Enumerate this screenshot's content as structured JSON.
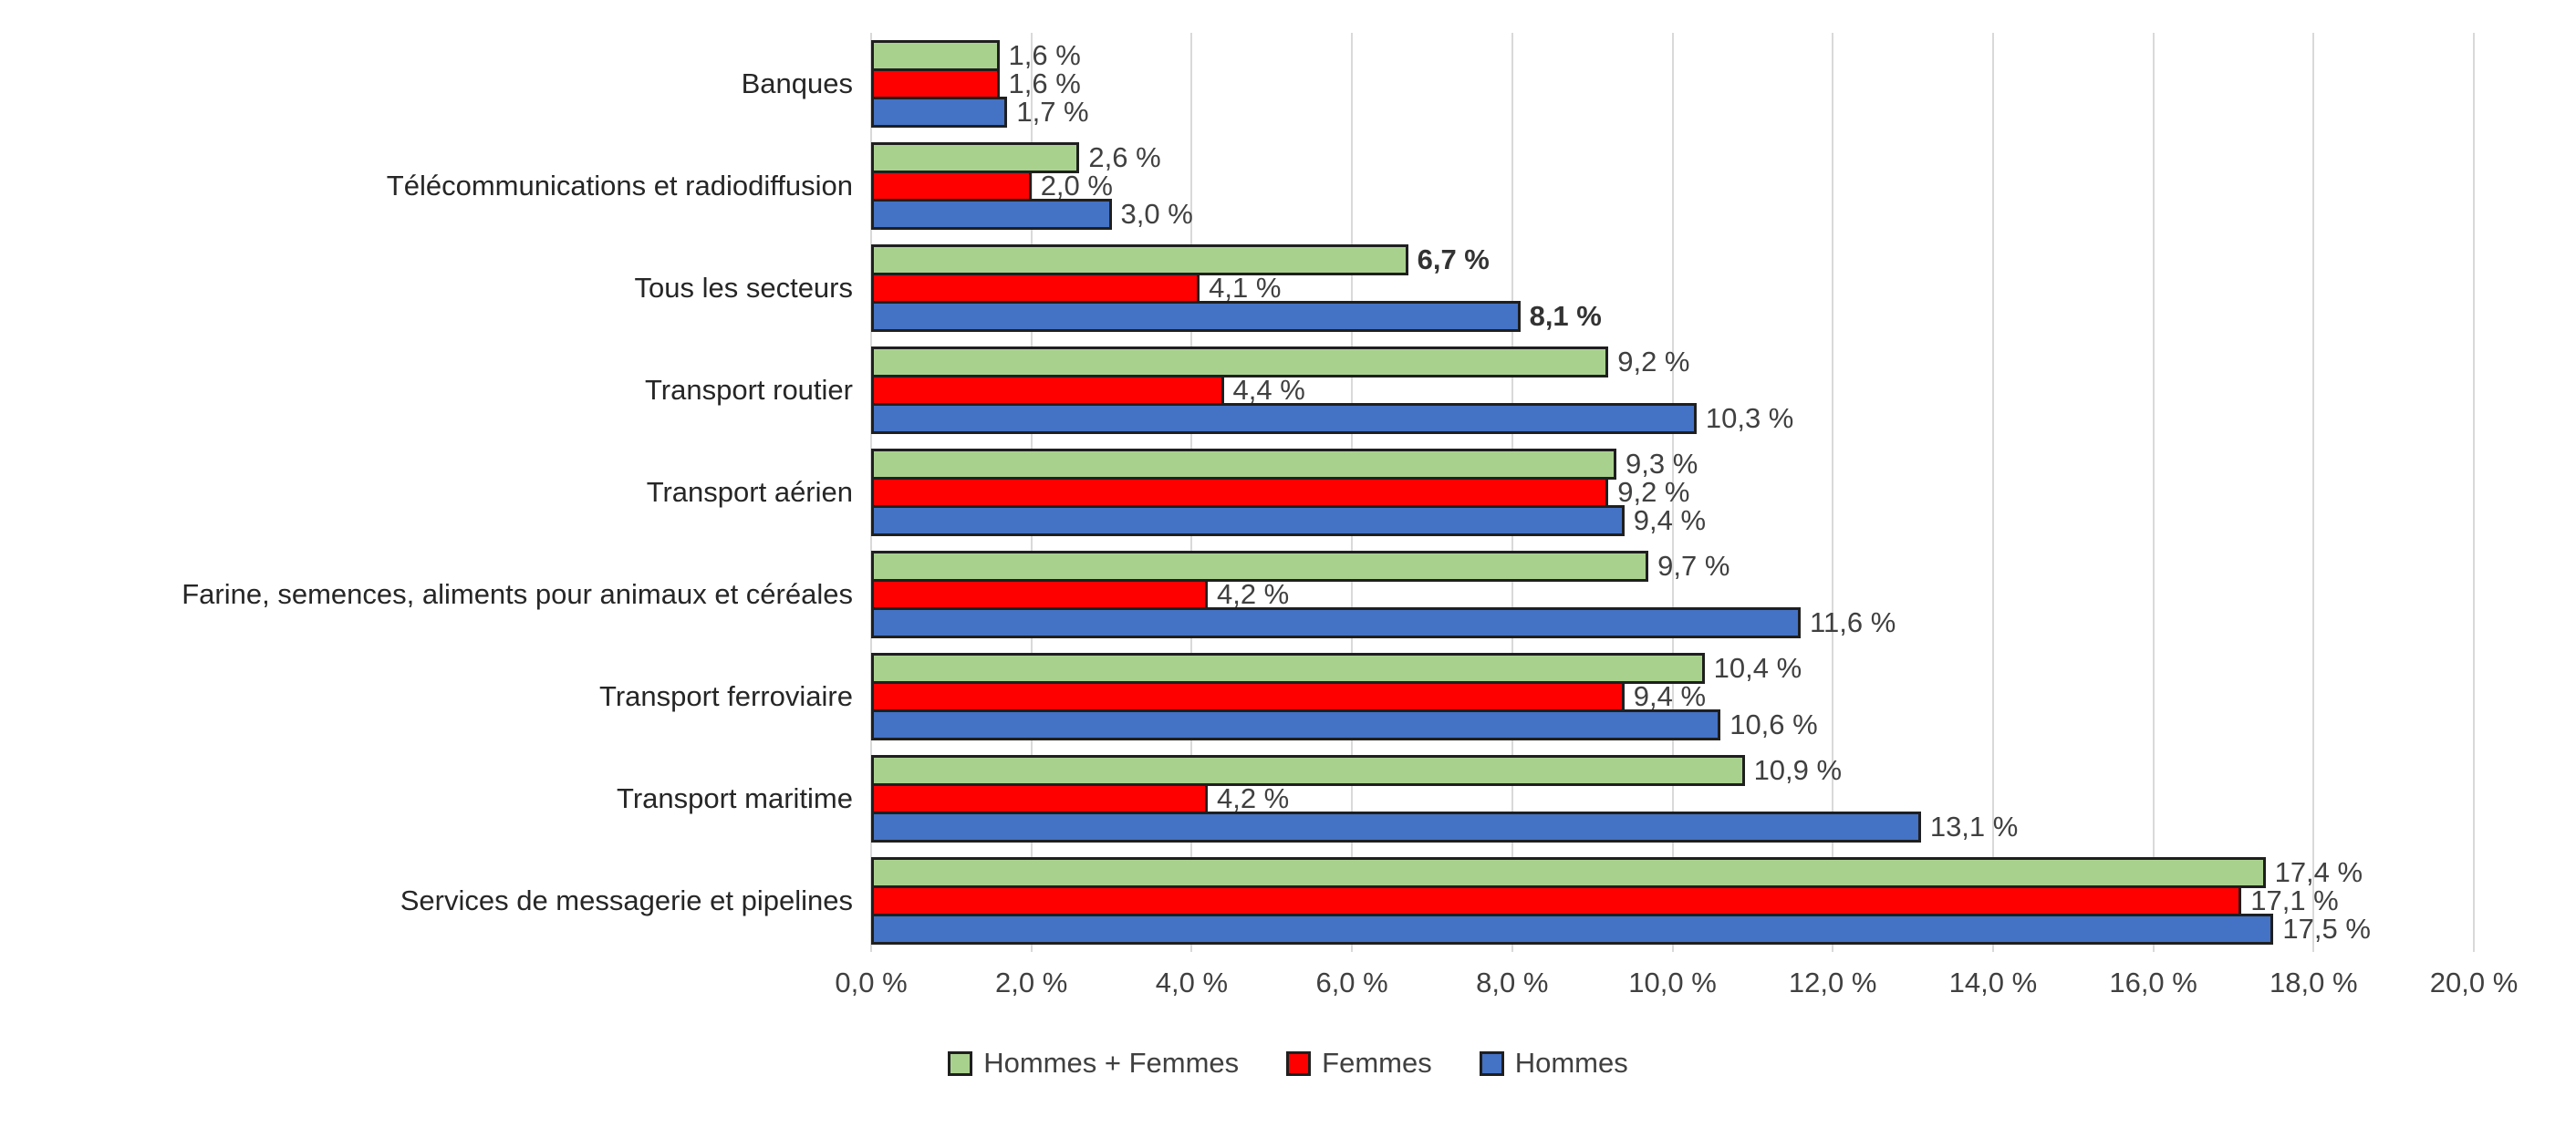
{
  "chart_data": {
    "type": "bar",
    "orientation": "horizontal",
    "title": "",
    "xlabel": "",
    "ylabel": "",
    "xlim": [
      0,
      20
    ],
    "grid": true,
    "legend_position": "bottom",
    "x_ticks": [
      "0,0 %",
      "2,0 %",
      "4,0 %",
      "6,0 %",
      "8,0 %",
      "10,0 %",
      "12,0 %",
      "14,0 %",
      "16,0 %",
      "18,0 %",
      "20,0 %"
    ],
    "categories": [
      "Banques",
      "Télécommunications et radiodiffusion",
      "Tous les secteurs",
      "Transport routier",
      "Transport aérien",
      "Farine, semences, aliments pour animaux et céréales",
      "Transport ferroviaire",
      "Transport maritime",
      "Services de messagerie et pipelines"
    ],
    "series": [
      {
        "name": "Hommes + Femmes",
        "color": "#a9d18e",
        "values": [
          1.6,
          2.6,
          6.7,
          9.2,
          9.3,
          9.7,
          10.4,
          10.9,
          17.4
        ],
        "labels": [
          "1,6 %",
          "2,6 %",
          "6,7 %",
          "9,2 %",
          "9,3 %",
          "9,7 %",
          "10,4 %",
          "10,9 %",
          "17,4 %"
        ],
        "bold": [
          false,
          false,
          true,
          false,
          false,
          false,
          false,
          false,
          false
        ]
      },
      {
        "name": "Femmes",
        "color": "#ff0000",
        "values": [
          1.6,
          2.0,
          4.1,
          4.4,
          9.2,
          4.2,
          9.4,
          4.2,
          17.1
        ],
        "labels": [
          "1,6 %",
          "2,0 %",
          "4,1 %",
          "4,4 %",
          "9,2 %",
          "4,2 %",
          "9,4 %",
          "4,2 %",
          "17,1 %"
        ],
        "bold": [
          false,
          false,
          false,
          false,
          false,
          false,
          false,
          false,
          false
        ]
      },
      {
        "name": "Hommes",
        "color": "#4472c4",
        "values": [
          1.7,
          3.0,
          8.1,
          10.3,
          9.4,
          11.6,
          10.6,
          13.1,
          17.5
        ],
        "labels": [
          "1,7 %",
          "3,0 %",
          "8,1 %",
          "10,3 %",
          "9,4 %",
          "11,6 %",
          "10,6 %",
          "13,1 %",
          "17,5 %"
        ],
        "bold": [
          false,
          false,
          true,
          false,
          false,
          false,
          false,
          false,
          false
        ]
      }
    ]
  }
}
